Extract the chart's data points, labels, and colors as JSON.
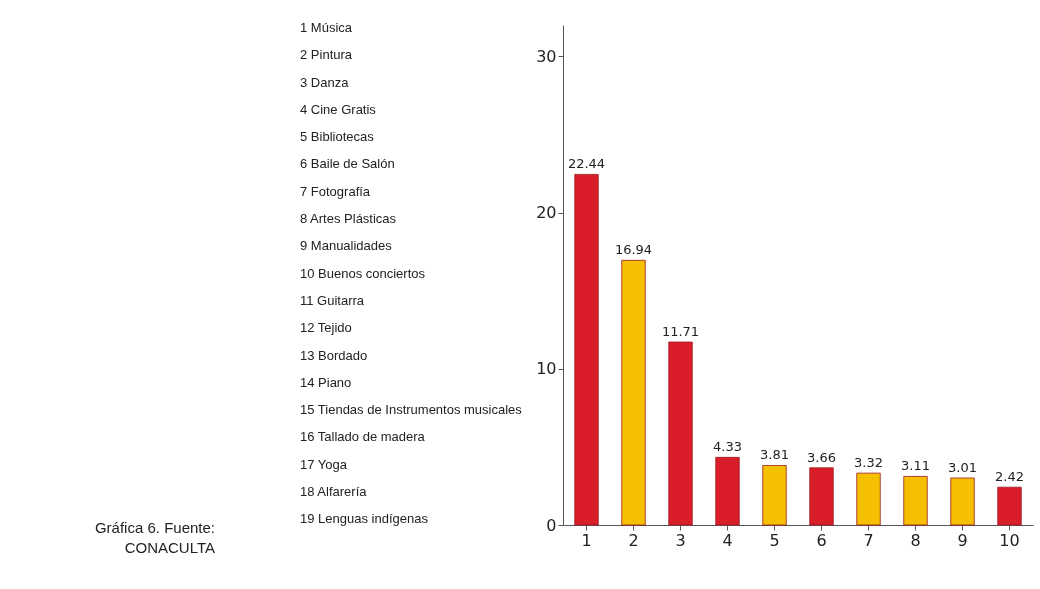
{
  "chart_data": {
    "type": "bar",
    "categories": [
      "1",
      "2",
      "3",
      "4",
      "5",
      "6",
      "7",
      "8",
      "9",
      "10"
    ],
    "values": [
      22.44,
      16.94,
      11.71,
      4.33,
      3.81,
      3.66,
      3.32,
      3.11,
      3.01,
      2.42
    ],
    "colors": [
      "#d91e2a",
      "#f5c000",
      "#d91e2a",
      "#d91e2a",
      "#f5c000",
      "#d91e2a",
      "#f5c000",
      "#f5c000",
      "#f5c000",
      "#d91e2a"
    ],
    "ylim": [
      0,
      32
    ],
    "yticks": [
      0,
      10,
      20,
      30
    ],
    "data_labels": true,
    "annotations": [
      "1 Música",
      "2 Pintura",
      "3 Danza",
      "4 Cine Gratis",
      "5 Bibliotecas",
      "6 Baile de Salón",
      "7 Fotografía",
      "8 Artes Plásticas",
      "9 Manualidades",
      "10 Buenos conciertos",
      "11 Guitarra",
      "12 Tejido",
      "13 Bordado",
      "14 Piano",
      "15 Tiendas de Instrumentos musicales",
      "16 Tallado de madera",
      "17 Yoga",
      "18 Alfarería",
      "19 Lenguas indígenas",
      "Gráfica 6. Fuente: CONACULTA"
    ]
  }
}
